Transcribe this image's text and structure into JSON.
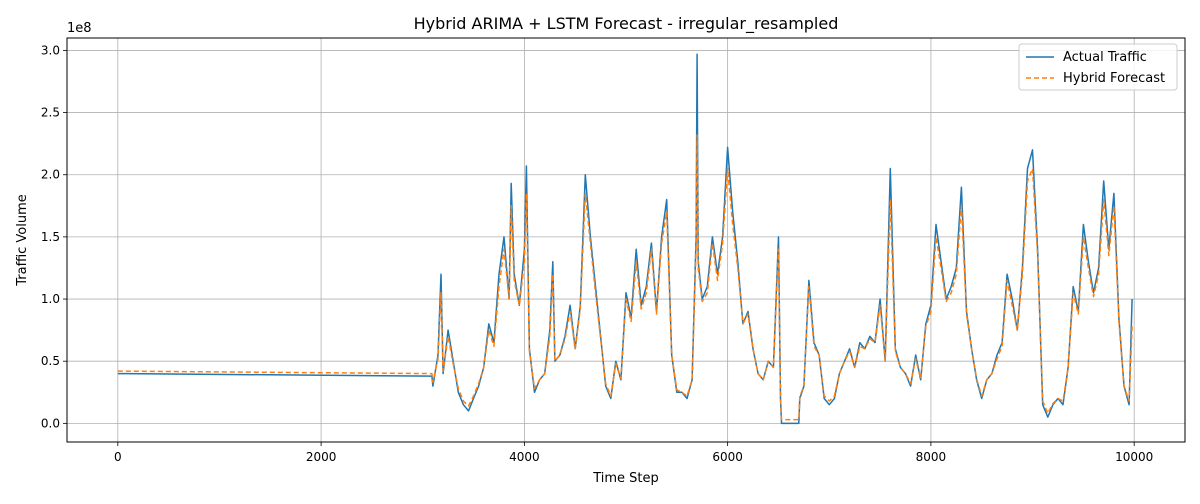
{
  "chart_data": {
    "type": "line",
    "title": "Hybrid ARIMA + LSTM Forecast - irregular_resampled",
    "xlabel": "Time Step",
    "ylabel": "Traffic Volume",
    "y_multiplier_label": "1e8",
    "xlim": [
      -500,
      10500
    ],
    "ylim": [
      -15000000,
      310000000
    ],
    "x_ticks": [
      0,
      2000,
      4000,
      6000,
      8000,
      10000
    ],
    "x_tick_labels": [
      "0",
      "2000",
      "4000",
      "6000",
      "8000",
      "10000"
    ],
    "y_ticks": [
      0,
      50000000,
      100000000,
      150000000,
      200000000,
      250000000,
      300000000
    ],
    "y_tick_labels": [
      "0.0",
      "0.5",
      "1.0",
      "1.5",
      "2.0",
      "2.5",
      "3.0"
    ],
    "grid": true,
    "legend_position": "top-right",
    "series": [
      {
        "name": "Actual Traffic",
        "color": "#1f77b4",
        "style": "solid",
        "x": [
          0,
          3090,
          3100,
          3150,
          3180,
          3200,
          3250,
          3300,
          3350,
          3400,
          3450,
          3500,
          3550,
          3600,
          3650,
          3700,
          3750,
          3800,
          3850,
          3870,
          3900,
          3950,
          4000,
          4020,
          4050,
          4100,
          4150,
          4200,
          4250,
          4280,
          4300,
          4350,
          4400,
          4450,
          4500,
          4550,
          4600,
          4650,
          4700,
          4750,
          4800,
          4850,
          4900,
          4950,
          5000,
          5050,
          5100,
          5150,
          5200,
          5250,
          5300,
          5350,
          5400,
          5450,
          5500,
          5550,
          5600,
          5650,
          5690,
          5700,
          5710,
          5750,
          5800,
          5850,
          5900,
          5950,
          6000,
          6050,
          6100,
          6150,
          6200,
          6250,
          6300,
          6350,
          6400,
          6450,
          6500,
          6520,
          6530,
          6700,
          6710,
          6750,
          6800,
          6850,
          6900,
          6950,
          7000,
          7050,
          7100,
          7150,
          7200,
          7250,
          7300,
          7350,
          7400,
          7450,
          7500,
          7550,
          7600,
          7650,
          7700,
          7750,
          7800,
          7850,
          7900,
          7950,
          8000,
          8050,
          8100,
          8150,
          8200,
          8250,
          8300,
          8350,
          8400,
          8450,
          8500,
          8550,
          8600,
          8650,
          8700,
          8750,
          8800,
          8850,
          8900,
          8950,
          9000,
          9050,
          9100,
          9150,
          9200,
          9250,
          9300,
          9350,
          9400,
          9450,
          9500,
          9550,
          9600,
          9650,
          9700,
          9750,
          9800,
          9850,
          9900,
          9950,
          9980
        ],
        "y": [
          40000000,
          38000000,
          30000000,
          55000000,
          120000000,
          40000000,
          75000000,
          50000000,
          25000000,
          15000000,
          10000000,
          20000000,
          30000000,
          45000000,
          80000000,
          65000000,
          120000000,
          150000000,
          100000000,
          193000000,
          120000000,
          95000000,
          140000000,
          207000000,
          60000000,
          25000000,
          35000000,
          40000000,
          75000000,
          130000000,
          50000000,
          55000000,
          70000000,
          95000000,
          60000000,
          95000000,
          200000000,
          150000000,
          110000000,
          70000000,
          30000000,
          20000000,
          50000000,
          35000000,
          105000000,
          85000000,
          140000000,
          95000000,
          110000000,
          145000000,
          90000000,
          150000000,
          180000000,
          55000000,
          25000000,
          25000000,
          20000000,
          35000000,
          150000000,
          297000000,
          130000000,
          100000000,
          110000000,
          150000000,
          120000000,
          150000000,
          222000000,
          170000000,
          130000000,
          80000000,
          90000000,
          60000000,
          40000000,
          35000000,
          50000000,
          45000000,
          150000000,
          20000000,
          0,
          0,
          20000000,
          30000000,
          115000000,
          65000000,
          55000000,
          20000000,
          15000000,
          20000000,
          40000000,
          50000000,
          60000000,
          45000000,
          65000000,
          60000000,
          70000000,
          65000000,
          100000000,
          50000000,
          205000000,
          60000000,
          45000000,
          40000000,
          30000000,
          55000000,
          35000000,
          80000000,
          95000000,
          160000000,
          130000000,
          100000000,
          110000000,
          125000000,
          190000000,
          90000000,
          60000000,
          35000000,
          20000000,
          35000000,
          40000000,
          55000000,
          65000000,
          120000000,
          100000000,
          75000000,
          125000000,
          205000000,
          220000000,
          140000000,
          15000000,
          5000000,
          15000000,
          20000000,
          15000000,
          45000000,
          110000000,
          90000000,
          160000000,
          130000000,
          105000000,
          125000000,
          195000000,
          140000000,
          185000000,
          85000000,
          30000000,
          15000000,
          100000000
        ]
      },
      {
        "name": "Hybrid Forecast",
        "color": "#ff7f0e",
        "style": "dashed",
        "x": [
          0,
          3090,
          3100,
          3150,
          3180,
          3200,
          3250,
          3300,
          3350,
          3400,
          3450,
          3500,
          3550,
          3600,
          3650,
          3700,
          3750,
          3800,
          3850,
          3870,
          3900,
          3950,
          4000,
          4020,
          4050,
          4100,
          4150,
          4200,
          4250,
          4280,
          4300,
          4350,
          4400,
          4450,
          4500,
          4550,
          4600,
          4650,
          4700,
          4750,
          4800,
          4850,
          4900,
          4950,
          5000,
          5050,
          5100,
          5150,
          5200,
          5250,
          5300,
          5350,
          5400,
          5450,
          5500,
          5550,
          5600,
          5650,
          5690,
          5700,
          5710,
          5750,
          5800,
          5850,
          5900,
          5950,
          6000,
          6050,
          6100,
          6150,
          6200,
          6250,
          6300,
          6350,
          6400,
          6450,
          6500,
          6520,
          6530,
          6700,
          6710,
          6750,
          6800,
          6850,
          6900,
          6950,
          7000,
          7050,
          7100,
          7150,
          7200,
          7250,
          7300,
          7350,
          7400,
          7450,
          7500,
          7550,
          7600,
          7650,
          7700,
          7750,
          7800,
          7850,
          7900,
          7950,
          8000,
          8050,
          8100,
          8150,
          8200,
          8250,
          8300,
          8350,
          8400,
          8450,
          8500,
          8550,
          8600,
          8650,
          8700,
          8750,
          8800,
          8850,
          8900,
          8950,
          9000,
          9050,
          9100,
          9150,
          9200,
          9250,
          9300,
          9350,
          9400,
          9450,
          9500,
          9550,
          9600,
          9650,
          9700,
          9750,
          9800,
          9850,
          9900,
          9950,
          9980
        ],
        "y": [
          42000000,
          40000000,
          33000000,
          52000000,
          105000000,
          42000000,
          70000000,
          48000000,
          28000000,
          18000000,
          14000000,
          22000000,
          32000000,
          45000000,
          75000000,
          62000000,
          110000000,
          140000000,
          100000000,
          175000000,
          115000000,
          95000000,
          130000000,
          185000000,
          58000000,
          28000000,
          35000000,
          40000000,
          70000000,
          120000000,
          50000000,
          55000000,
          68000000,
          90000000,
          60000000,
          92000000,
          185000000,
          145000000,
          105000000,
          68000000,
          32000000,
          22000000,
          48000000,
          36000000,
          100000000,
          82000000,
          130000000,
          92000000,
          105000000,
          140000000,
          88000000,
          145000000,
          170000000,
          55000000,
          27000000,
          25000000,
          22000000,
          35000000,
          140000000,
          232000000,
          125000000,
          98000000,
          105000000,
          145000000,
          115000000,
          145000000,
          205000000,
          160000000,
          125000000,
          80000000,
          88000000,
          60000000,
          40000000,
          35000000,
          50000000,
          45000000,
          140000000,
          22000000,
          3000000,
          3000000,
          22000000,
          30000000,
          110000000,
          62000000,
          55000000,
          22000000,
          18000000,
          22000000,
          40000000,
          50000000,
          58000000,
          45000000,
          62000000,
          60000000,
          68000000,
          65000000,
          95000000,
          50000000,
          180000000,
          58000000,
          45000000,
          40000000,
          32000000,
          52000000,
          36000000,
          78000000,
          90000000,
          150000000,
          125000000,
          98000000,
          105000000,
          120000000,
          175000000,
          88000000,
          60000000,
          36000000,
          22000000,
          35000000,
          40000000,
          52000000,
          62000000,
          115000000,
          95000000,
          75000000,
          120000000,
          195000000,
          205000000,
          135000000,
          18000000,
          8000000,
          16000000,
          20000000,
          18000000,
          45000000,
          105000000,
          88000000,
          150000000,
          125000000,
          102000000,
          120000000,
          180000000,
          135000000,
          175000000,
          82000000,
          30000000,
          18000000,
          78000000
        ]
      }
    ]
  }
}
